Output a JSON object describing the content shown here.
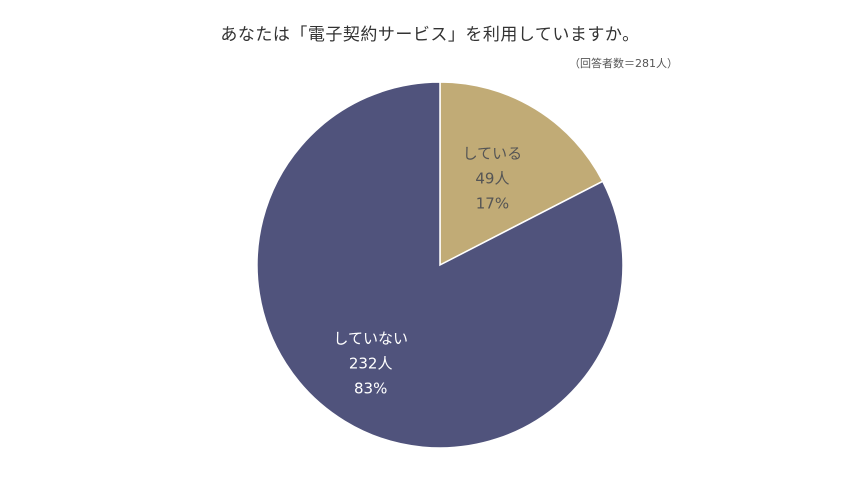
{
  "chart_data": {
    "type": "pie",
    "title": "あなたは「電子契約サービス」を利用していますか。",
    "subtitle": "（回答者数＝281人）",
    "slices": [
      {
        "label": "している",
        "count": "49人",
        "percent_label": "17%",
        "value": 49,
        "color": "#c1ab76",
        "text_color": "#555555"
      },
      {
        "label": "していない",
        "count": "232人",
        "percent_label": "83%",
        "value": 232,
        "color": "#50537c",
        "text_color": "#ffffff"
      }
    ],
    "start_angle": "12 o'clock",
    "direction": "clockwise",
    "slice_border_color": "#ffffff"
  }
}
